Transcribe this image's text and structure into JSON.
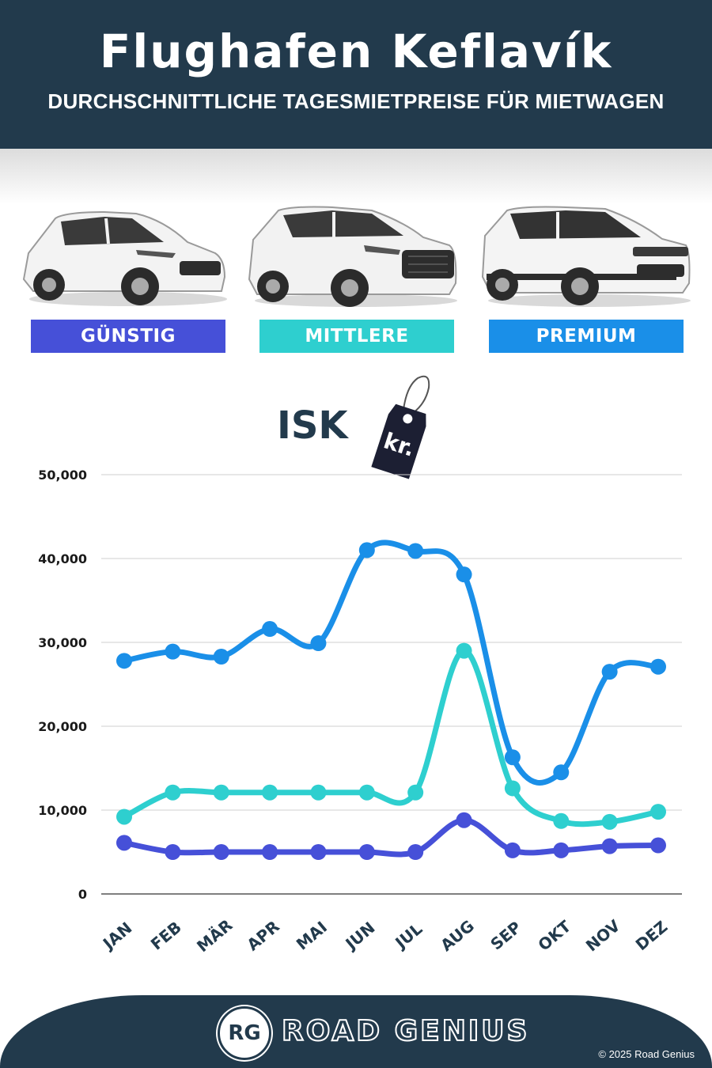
{
  "header": {
    "title": "Flughafen Keflavík",
    "subtitle": "DURCHSCHNITTLICHE TAGESMIETPREISE FÜR MIETWAGEN"
  },
  "categories": [
    {
      "label": "GÜNSTIG",
      "color": "#4650d8",
      "icon": "hatchback-car-icon"
    },
    {
      "label": "MITTLERE",
      "color": "#2ecfcf",
      "icon": "suv-car-icon"
    },
    {
      "label": "PREMIUM",
      "color": "#1a8fe8",
      "icon": "luxury-suv-car-icon"
    }
  ],
  "currency": {
    "label": "ISK",
    "tag_text": "kr.",
    "icon": "price-tag-icon"
  },
  "chart_data": {
    "type": "line",
    "categories": [
      "JAN",
      "FEB",
      "MÄR",
      "APR",
      "MAI",
      "JUN",
      "JUL",
      "AUG",
      "SEP",
      "OKT",
      "NOV",
      "DEZ"
    ],
    "ylim": [
      0,
      50000
    ],
    "yticks": [
      0,
      10000,
      20000,
      30000,
      40000,
      50000
    ],
    "ytick_labels": [
      "0",
      "10,000",
      "20,000",
      "30,000",
      "40,000",
      "50,000"
    ],
    "grid": true,
    "series": [
      {
        "name": "PREMIUM",
        "color": "#1a8fe8",
        "values": [
          27800,
          28900,
          28300,
          31600,
          29900,
          41000,
          40900,
          38100,
          16300,
          14500,
          26500,
          27100
        ]
      },
      {
        "name": "MITTLERE",
        "color": "#2ecfcf",
        "values": [
          9200,
          12100,
          12100,
          12100,
          12100,
          12100,
          12100,
          29000,
          12600,
          8700,
          8600,
          9800
        ]
      },
      {
        "name": "GÜNSTIG",
        "color": "#4650d8",
        "values": [
          6100,
          5000,
          5000,
          5000,
          5000,
          5000,
          5000,
          8800,
          5200,
          5200,
          5700,
          5800
        ]
      }
    ]
  },
  "footer": {
    "logo_text": "RG",
    "brand": "ROAD GENIUS",
    "copyright": "© 2025 Road Genius"
  }
}
